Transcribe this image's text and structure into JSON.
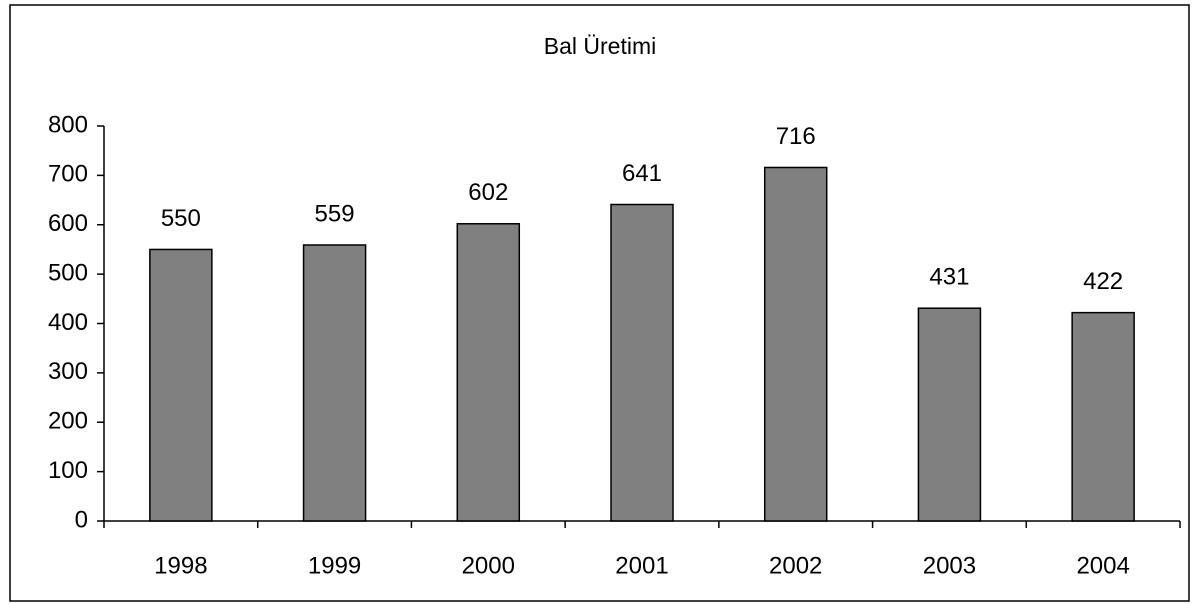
{
  "chart_data": {
    "type": "bar",
    "title": "Bal Üretimi",
    "categories": [
      "1998",
      "1999",
      "2000",
      "2001",
      "2002",
      "2003",
      "2004"
    ],
    "values": [
      550,
      559,
      602,
      641,
      716,
      431,
      422
    ],
    "color": "#808080",
    "ylim": [
      0,
      800
    ],
    "yticks": [
      0,
      100,
      200,
      300,
      400,
      500,
      600,
      700,
      800
    ],
    "grid": false
  }
}
